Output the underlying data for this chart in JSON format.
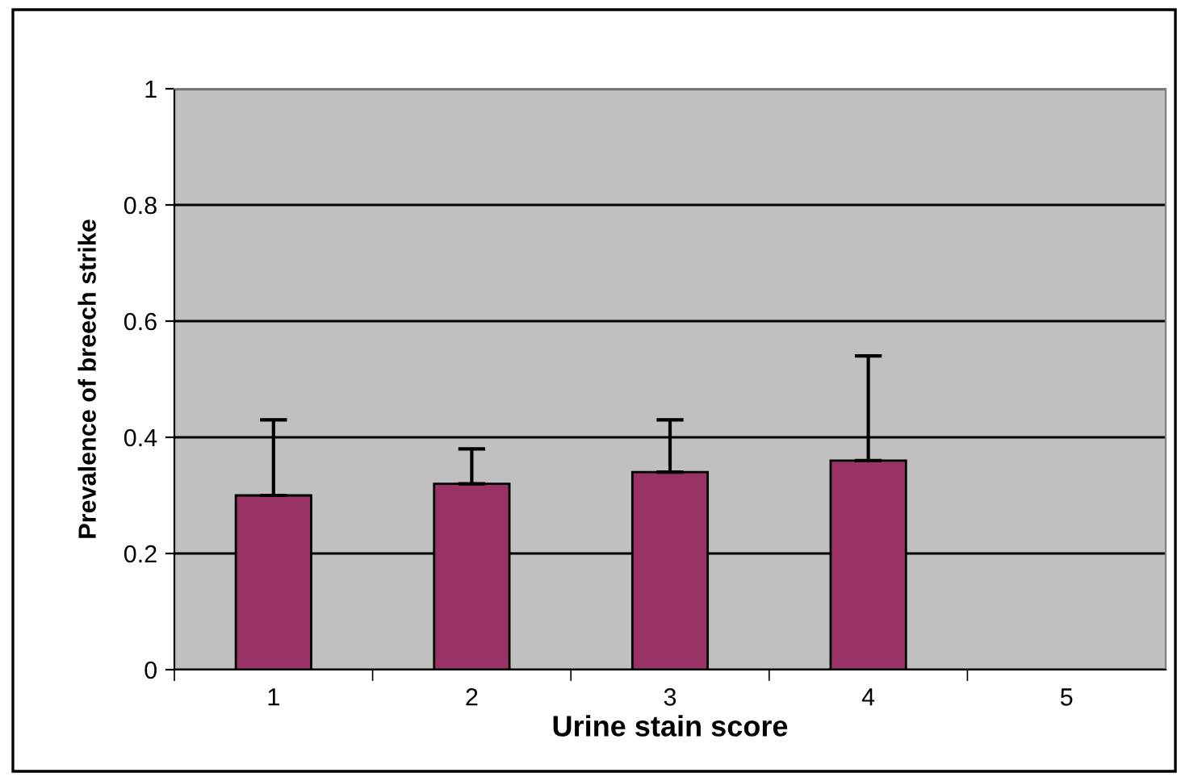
{
  "chart_data": {
    "type": "bar",
    "xlabel": "Urine stain score",
    "ylabel": "Prevalence of breech strike",
    "categories": [
      "1",
      "2",
      "3",
      "4",
      "5"
    ],
    "values": [
      0.3,
      0.32,
      0.34,
      0.36,
      null
    ],
    "errors": [
      [
        0.3,
        0.43
      ],
      [
        0.32,
        0.38
      ],
      [
        0.34,
        0.43
      ],
      [
        0.36,
        0.54
      ],
      null
    ],
    "color": "#993366",
    "ylim": [
      0,
      1
    ],
    "yticks": [
      0,
      0.2,
      0.4,
      0.6,
      0.8,
      1
    ],
    "grid": "y",
    "legend": false
  }
}
